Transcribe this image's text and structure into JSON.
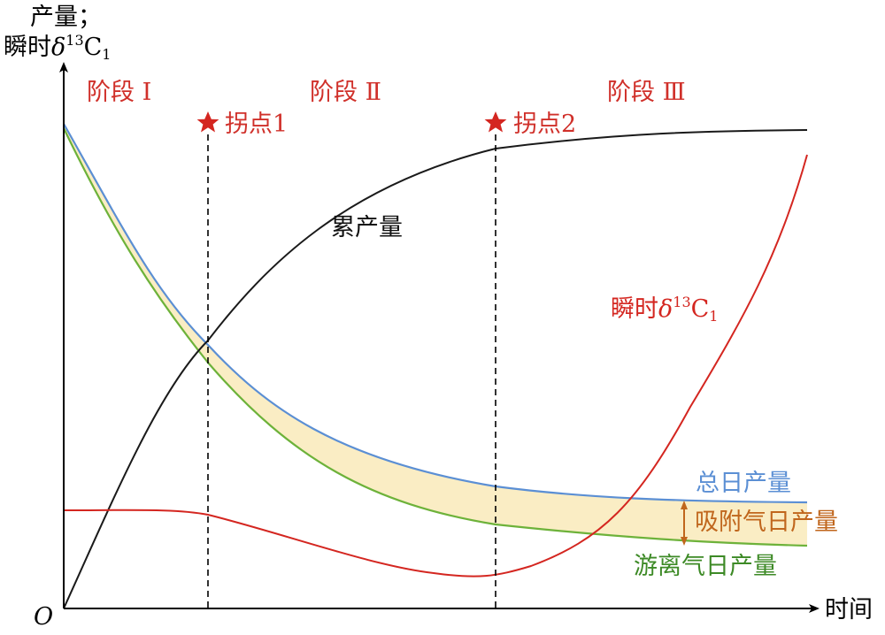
{
  "axes": {
    "y_label_line1": "产量；",
    "y_label_line2_prefix": "瞬时",
    "y_label_delta": "δ",
    "y_label_sup": "13",
    "y_label_c": "C",
    "y_label_sub": "1",
    "x_label": "时间",
    "origin_label": "O"
  },
  "stages": [
    "阶段 Ⅰ",
    "阶段 Ⅱ",
    "阶段 Ⅲ"
  ],
  "inflection_points": [
    {
      "label": "拐点1"
    },
    {
      "label": "拐点2"
    }
  ],
  "curve_labels": {
    "cumulative": "累产量",
    "instant_prefix": "瞬时",
    "instant_delta": "δ",
    "instant_sup": "13",
    "instant_c": "C",
    "instant_sub": "1",
    "total_daily": "总日产量",
    "adsorbed_daily": "吸附气日产量",
    "free_daily": "游离气日产量"
  },
  "colors": {
    "axis": "#000000",
    "stage_text": "#d0302a",
    "star": "#d42620",
    "cumulative": "#1a1a1a",
    "instant": "#d42620",
    "total": "#5b8fd4",
    "free": "#6db23a",
    "adsorbed_text": "#c0661c",
    "band_fill": "#faedc4"
  }
}
